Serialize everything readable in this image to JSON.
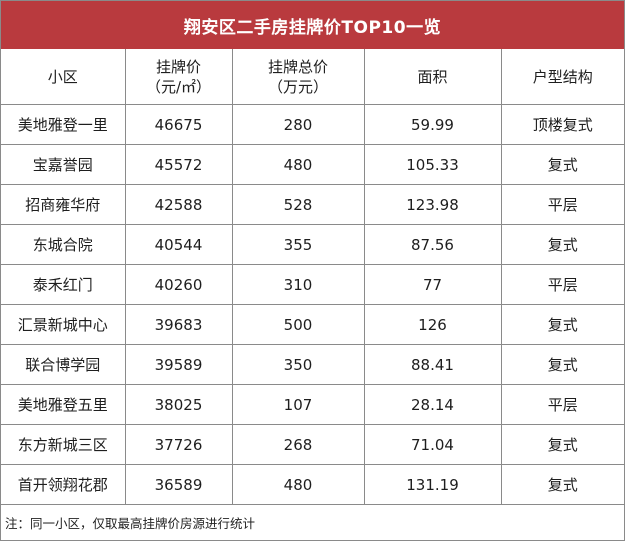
{
  "title": "翔安区二手房挂牌价TOP10一览",
  "headers": {
    "name": "小区",
    "price_line1": "挂牌价",
    "price_line2": "（元/㎡）",
    "total_line1": "挂牌总价",
    "total_line2": "（万元）",
    "area": "面积",
    "type": "户型结构"
  },
  "rows": [
    {
      "name": "美地雅登一里",
      "price": "46675",
      "total": "280",
      "area": "59.99",
      "type": "顶楼复式"
    },
    {
      "name": "宝嘉誉园",
      "price": "45572",
      "total": "480",
      "area": "105.33",
      "type": "复式"
    },
    {
      "name": "招商雍华府",
      "price": "42588",
      "total": "528",
      "area": "123.98",
      "type": "平层"
    },
    {
      "name": "东城合院",
      "price": "40544",
      "total": "355",
      "area": "87.56",
      "type": "复式"
    },
    {
      "name": "泰禾红门",
      "price": "40260",
      "total": "310",
      "area": "77",
      "type": "平层"
    },
    {
      "name": "汇景新城中心",
      "price": "39683",
      "total": "500",
      "area": "126",
      "type": "复式"
    },
    {
      "name": "联合博学园",
      "price": "39589",
      "total": "350",
      "area": "88.41",
      "type": "复式"
    },
    {
      "name": "美地雅登五里",
      "price": "38025",
      "total": "107",
      "area": "28.14",
      "type": "平层"
    },
    {
      "name": "东方新城三区",
      "price": "37726",
      "total": "268",
      "area": "71.04",
      "type": "复式"
    },
    {
      "name": "首开领翔花郡",
      "price": "36589",
      "total": "480",
      "area": "131.19",
      "type": "复式"
    }
  ],
  "note": "注：同一小区，仅取最高挂牌价房源进行统计",
  "colors": {
    "title_bg": "#b93a3e",
    "title_text": "#ffffff",
    "grid_line": "#8a8a8a"
  }
}
